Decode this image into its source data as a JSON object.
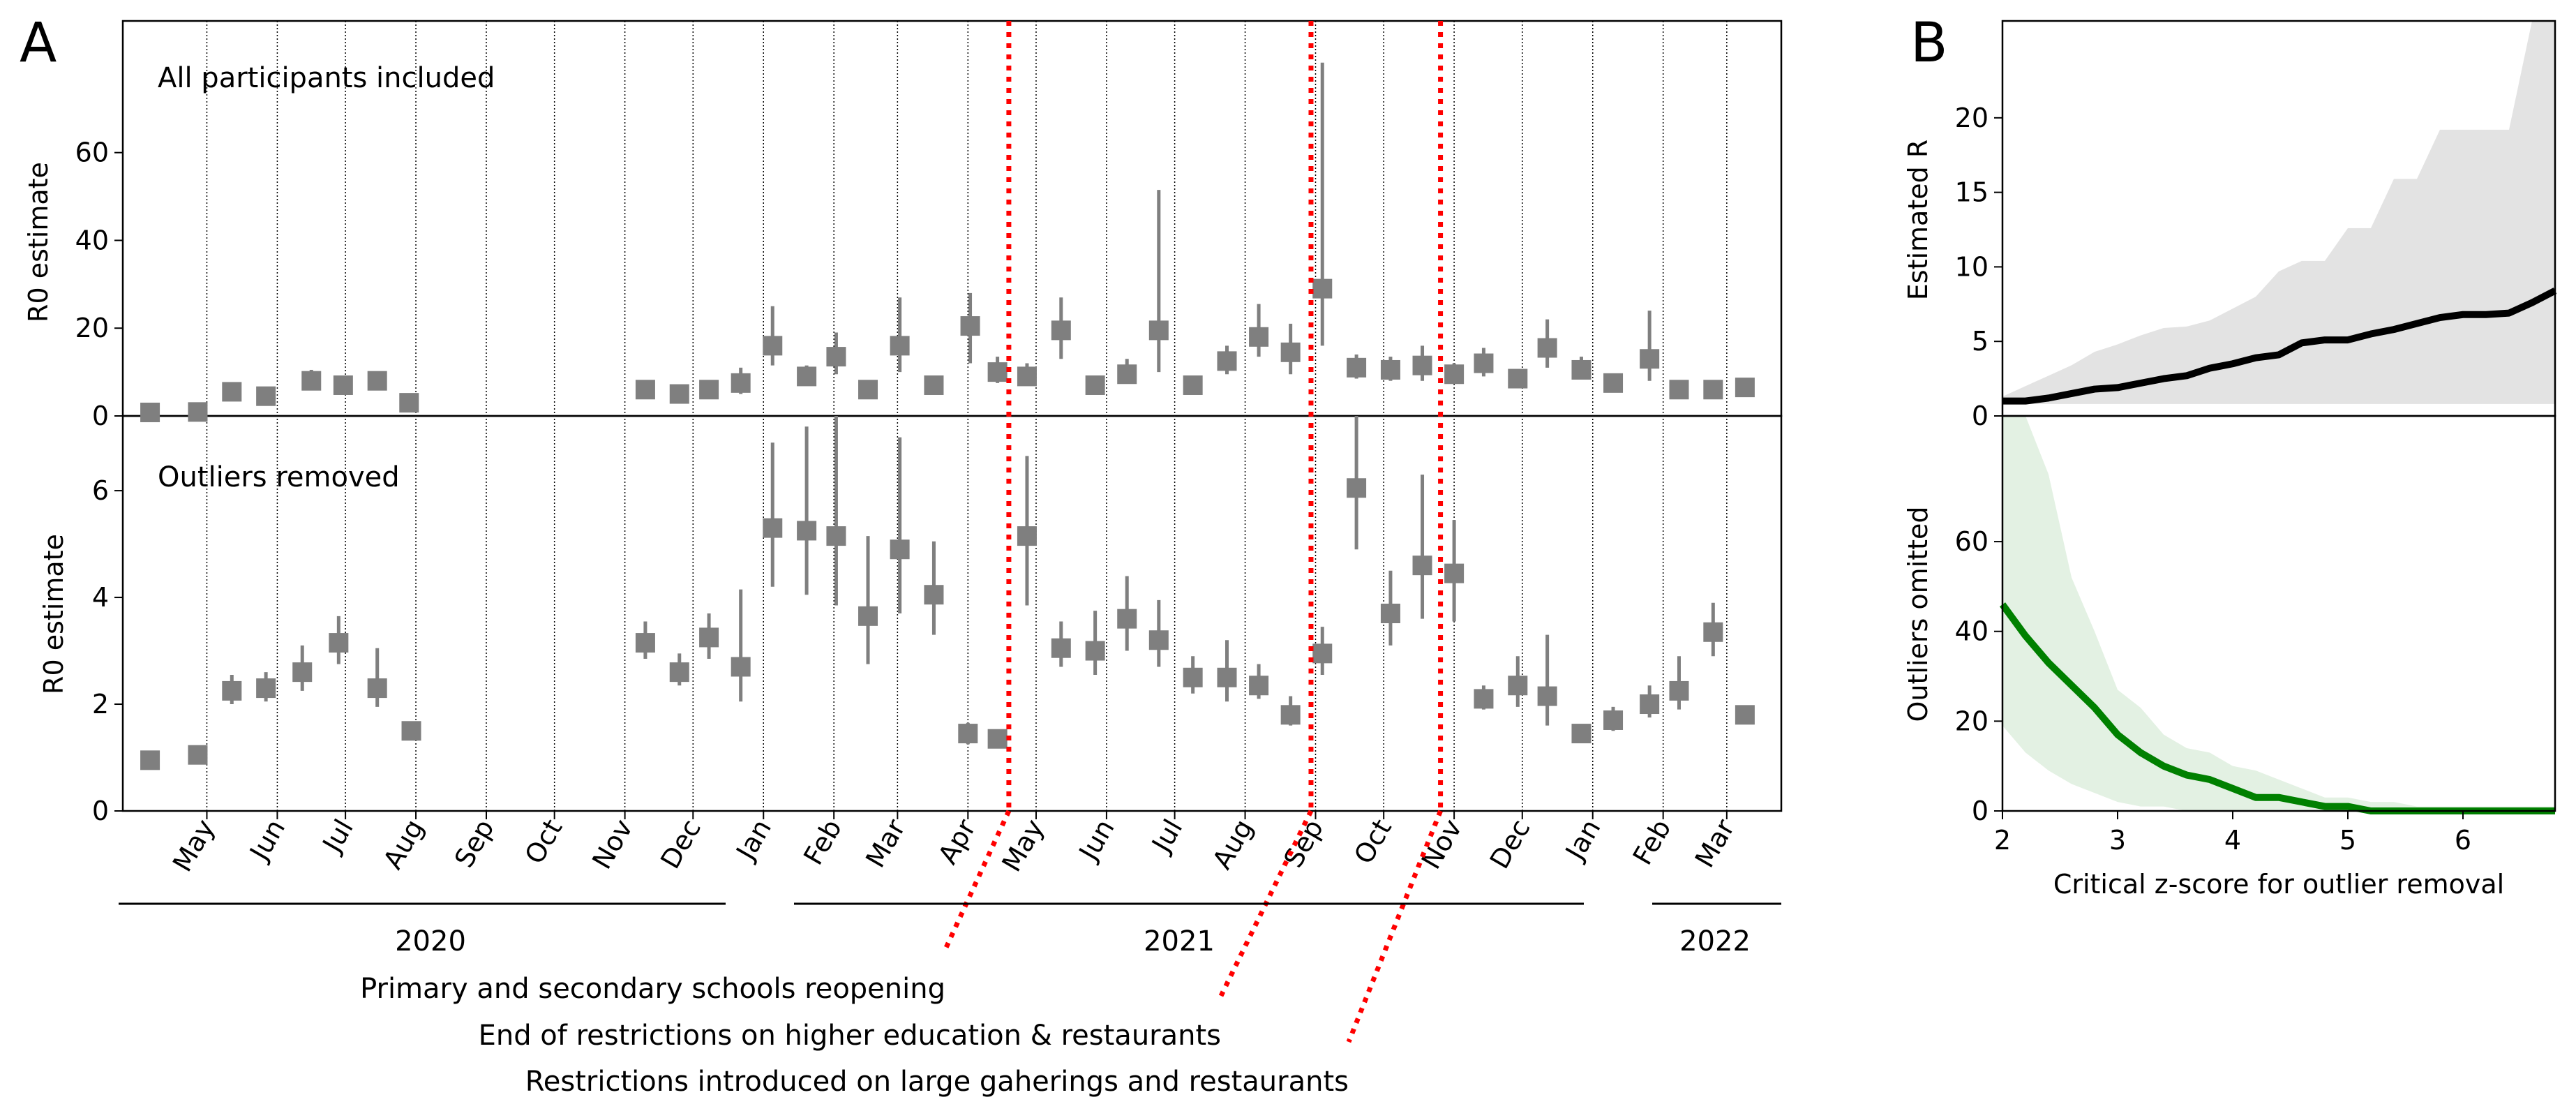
{
  "panel_a": {
    "letter": "A",
    "title_top": "All participants included",
    "title_bottom": "Outliers removed",
    "ylabel_top": "R0 estimate",
    "ylabel_bottom": "R0 estimate",
    "yticks_top": [
      0,
      20,
      40,
      60
    ],
    "yticks_bottom": [
      0,
      2,
      4,
      6
    ],
    "year_labels": [
      "2020",
      "2021",
      "2022"
    ],
    "event_labels": [
      "Primary and secondary schools reopening",
      "End of restrictions on higher education & restaurants",
      "Restrictions introduced on large gaherings and restaurants"
    ]
  },
  "panel_b": {
    "letter": "B",
    "ylabel_top": "Estimated R",
    "ylabel_bottom": "Outliers omitted",
    "xlabel": "Critical z-score for outlier removal",
    "yticks_top": [
      0,
      5,
      10,
      15,
      20
    ],
    "yticks_bottom": [
      0,
      20,
      40,
      60
    ],
    "xticks": [
      2,
      3,
      4,
      5,
      6
    ]
  },
  "colors": {
    "marker": "#7f7f7f",
    "event_line": "#ff0000",
    "estimated_r_line": "#000000",
    "estimated_r_band": "#e3e3e3",
    "outliers_line": "#008000",
    "outliers_band": "#e3f1e3"
  },
  "chart_data": [
    {
      "type": "scatter",
      "title": "All participants included",
      "ylabel": "R0 estimate",
      "ylim": [
        0,
        90
      ],
      "grid": "vertical dotted lines at month boundaries",
      "x_axis": {
        "type": "date",
        "range": [
          "2020-03-25",
          "2022-03-25"
        ],
        "month_ticks": [
          {
            "label": "May",
            "date": "2020-05-01"
          },
          {
            "label": "Jun",
            "date": "2020-06-01"
          },
          {
            "label": "Jul",
            "date": "2020-07-01"
          },
          {
            "label": "Aug",
            "date": "2020-08-01"
          },
          {
            "label": "Sep",
            "date": "2020-09-01"
          },
          {
            "label": "Oct",
            "date": "2020-10-01"
          },
          {
            "label": "Nov",
            "date": "2020-11-01"
          },
          {
            "label": "Dec",
            "date": "2020-12-01"
          },
          {
            "label": "Jan",
            "date": "2021-01-01"
          },
          {
            "label": "Feb",
            "date": "2021-02-01"
          },
          {
            "label": "Mar",
            "date": "2021-03-01"
          },
          {
            "label": "Apr",
            "date": "2021-04-01"
          },
          {
            "label": "May",
            "date": "2021-05-01"
          },
          {
            "label": "Jun",
            "date": "2021-06-01"
          },
          {
            "label": "Jul",
            "date": "2021-07-01"
          },
          {
            "label": "Aug",
            "date": "2021-08-01"
          },
          {
            "label": "Sep",
            "date": "2021-09-01"
          },
          {
            "label": "Oct",
            "date": "2021-10-01"
          },
          {
            "label": "Nov",
            "date": "2021-11-01"
          },
          {
            "label": "Dec",
            "date": "2021-12-01"
          },
          {
            "label": "Jan",
            "date": "2022-01-01"
          },
          {
            "label": "Feb",
            "date": "2022-02-01"
          },
          {
            "label": "Mar",
            "date": "2022-03-01"
          }
        ]
      },
      "event_dates": [
        "2021-04-19",
        "2021-08-30",
        "2021-10-26"
      ],
      "points": [
        {
          "date": "2020-04-06",
          "y": 0.8,
          "lo": 0.5,
          "hi": 1.2
        },
        {
          "date": "2020-04-27",
          "y": 0.9,
          "lo": 0.6,
          "hi": 1.3
        },
        {
          "date": "2020-05-12",
          "y": 5.5,
          "lo": 4.5,
          "hi": 6.5
        },
        {
          "date": "2020-05-27",
          "y": 4.5,
          "lo": 3.5,
          "hi": 5.5
        },
        {
          "date": "2020-06-16",
          "y": 8.0,
          "lo": 6.5,
          "hi": 10.5
        },
        {
          "date": "2020-06-30",
          "y": 7.0,
          "lo": 5.5,
          "hi": 8.5
        },
        {
          "date": "2020-07-15",
          "y": 8.0,
          "lo": 6.5,
          "hi": 10.0
        },
        {
          "date": "2020-07-29",
          "y": 3.0,
          "lo": 2.0,
          "hi": 4.0
        },
        {
          "date": "2020-11-10",
          "y": 6.0,
          "lo": 5.0,
          "hi": 7.0
        },
        {
          "date": "2020-11-25",
          "y": 5.0,
          "lo": 4.0,
          "hi": 6.5
        },
        {
          "date": "2020-12-08",
          "y": 6.0,
          "lo": 4.5,
          "hi": 8.0
        },
        {
          "date": "2020-12-22",
          "y": 7.5,
          "lo": 5.0,
          "hi": 11.0
        },
        {
          "date": "2021-01-05",
          "y": 16.0,
          "lo": 11.5,
          "hi": 25.0
        },
        {
          "date": "2021-01-20",
          "y": 9.0,
          "lo": 7.0,
          "hi": 11.5
        },
        {
          "date": "2021-02-02",
          "y": 13.5,
          "lo": 9.5,
          "hi": 19.0
        },
        {
          "date": "2021-02-16",
          "y": 6.0,
          "lo": 5.0,
          "hi": 7.5
        },
        {
          "date": "2021-03-02",
          "y": 16.0,
          "lo": 10.0,
          "hi": 27.0
        },
        {
          "date": "2021-03-17",
          "y": 7.0,
          "lo": 5.5,
          "hi": 9.0
        },
        {
          "date": "2021-04-02",
          "y": 20.5,
          "lo": 12.0,
          "hi": 28.0
        },
        {
          "date": "2021-04-14",
          "y": 10.0,
          "lo": 7.5,
          "hi": 13.5
        },
        {
          "date": "2021-04-27",
          "y": 9.0,
          "lo": 7.0,
          "hi": 12.0
        },
        {
          "date": "2021-05-12",
          "y": 19.5,
          "lo": 13.0,
          "hi": 27.0
        },
        {
          "date": "2021-05-27",
          "y": 7.0,
          "lo": 5.5,
          "hi": 9.0
        },
        {
          "date": "2021-06-10",
          "y": 9.5,
          "lo": 7.5,
          "hi": 13.0
        },
        {
          "date": "2021-06-24",
          "y": 19.5,
          "lo": 10.0,
          "hi": 51.5
        },
        {
          "date": "2021-07-09",
          "y": 7.0,
          "lo": 5.5,
          "hi": 9.0
        },
        {
          "date": "2021-07-24",
          "y": 12.5,
          "lo": 9.5,
          "hi": 16.0
        },
        {
          "date": "2021-08-07",
          "y": 18.0,
          "lo": 13.5,
          "hi": 25.5
        },
        {
          "date": "2021-08-21",
          "y": 14.5,
          "lo": 9.5,
          "hi": 21.0
        },
        {
          "date": "2021-09-04",
          "y": 29.0,
          "lo": 16.0,
          "hi": 80.5
        },
        {
          "date": "2021-09-19",
          "y": 11.0,
          "lo": 8.5,
          "hi": 14.0
        },
        {
          "date": "2021-10-04",
          "y": 10.5,
          "lo": 8.0,
          "hi": 13.5
        },
        {
          "date": "2021-10-18",
          "y": 11.5,
          "lo": 8.0,
          "hi": 16.0
        },
        {
          "date": "2021-11-01",
          "y": 9.5,
          "lo": 7.5,
          "hi": 12.0
        },
        {
          "date": "2021-11-14",
          "y": 12.0,
          "lo": 9.0,
          "hi": 15.5
        },
        {
          "date": "2021-11-29",
          "y": 8.5,
          "lo": 7.0,
          "hi": 10.5
        },
        {
          "date": "2021-12-12",
          "y": 15.5,
          "lo": 11.0,
          "hi": 22.0
        },
        {
          "date": "2021-12-27",
          "y": 10.5,
          "lo": 8.5,
          "hi": 13.5
        },
        {
          "date": "2022-01-10",
          "y": 7.5,
          "lo": 6.0,
          "hi": 9.5
        },
        {
          "date": "2022-01-26",
          "y": 13.0,
          "lo": 8.0,
          "hi": 24.0
        },
        {
          "date": "2022-02-08",
          "y": 6.0,
          "lo": 5.0,
          "hi": 7.5
        },
        {
          "date": "2022-02-23",
          "y": 6.0,
          "lo": 5.0,
          "hi": 7.5
        },
        {
          "date": "2022-03-09",
          "y": 6.5,
          "lo": 5.0,
          "hi": 8.0
        }
      ]
    },
    {
      "type": "scatter",
      "title": "Outliers removed",
      "ylabel": "R0 estimate",
      "ylim": [
        0,
        7.4
      ],
      "x_axis": "same date axis as the panel above",
      "points": [
        {
          "date": "2020-04-06",
          "y": 0.95,
          "lo": 0.85,
          "hi": 1.05
        },
        {
          "date": "2020-04-27",
          "y": 1.05,
          "lo": 0.95,
          "hi": 1.15
        },
        {
          "date": "2020-05-12",
          "y": 2.25,
          "lo": 2.0,
          "hi": 2.55
        },
        {
          "date": "2020-05-27",
          "y": 2.3,
          "lo": 2.05,
          "hi": 2.6
        },
        {
          "date": "2020-06-12",
          "y": 2.6,
          "lo": 2.25,
          "hi": 3.1
        },
        {
          "date": "2020-06-28",
          "y": 3.15,
          "lo": 2.75,
          "hi": 3.65
        },
        {
          "date": "2020-07-15",
          "y": 2.3,
          "lo": 1.95,
          "hi": 3.05
        },
        {
          "date": "2020-07-30",
          "y": 1.5,
          "lo": 1.35,
          "hi": 1.65
        },
        {
          "date": "2020-11-10",
          "y": 3.15,
          "lo": 2.85,
          "hi": 3.55
        },
        {
          "date": "2020-11-25",
          "y": 2.6,
          "lo": 2.35,
          "hi": 2.95
        },
        {
          "date": "2020-12-08",
          "y": 3.25,
          "lo": 2.85,
          "hi": 3.7
        },
        {
          "date": "2020-12-22",
          "y": 2.7,
          "lo": 2.05,
          "hi": 4.15
        },
        {
          "date": "2021-01-05",
          "y": 5.3,
          "lo": 4.2,
          "hi": 6.9
        },
        {
          "date": "2021-01-20",
          "y": 5.25,
          "lo": 4.05,
          "hi": 7.2
        },
        {
          "date": "2021-02-02",
          "y": 5.15,
          "lo": 3.85,
          "hi": 7.5
        },
        {
          "date": "2021-02-16",
          "y": 3.65,
          "lo": 2.75,
          "hi": 5.15
        },
        {
          "date": "2021-03-02",
          "y": 4.9,
          "lo": 3.7,
          "hi": 7.0
        },
        {
          "date": "2021-03-17",
          "y": 4.05,
          "lo": 3.3,
          "hi": 5.05
        },
        {
          "date": "2021-04-01",
          "y": 1.45,
          "lo": 1.25,
          "hi": 1.65
        },
        {
          "date": "2021-04-14",
          "y": 1.35,
          "lo": 1.2,
          "hi": 1.5
        },
        {
          "date": "2021-04-27",
          "y": 5.15,
          "lo": 3.85,
          "hi": 6.65
        },
        {
          "date": "2021-05-12",
          "y": 3.05,
          "lo": 2.7,
          "hi": 3.55
        },
        {
          "date": "2021-05-27",
          "y": 3.0,
          "lo": 2.55,
          "hi": 3.75
        },
        {
          "date": "2021-06-10",
          "y": 3.6,
          "lo": 3.0,
          "hi": 4.4
        },
        {
          "date": "2021-06-24",
          "y": 3.2,
          "lo": 2.7,
          "hi": 3.95
        },
        {
          "date": "2021-07-09",
          "y": 2.5,
          "lo": 2.2,
          "hi": 2.9
        },
        {
          "date": "2021-07-24",
          "y": 2.5,
          "lo": 2.05,
          "hi": 3.2
        },
        {
          "date": "2021-08-07",
          "y": 2.35,
          "lo": 2.1,
          "hi": 2.75
        },
        {
          "date": "2021-08-21",
          "y": 1.8,
          "lo": 1.6,
          "hi": 2.15
        },
        {
          "date": "2021-09-04",
          "y": 2.95,
          "lo": 2.55,
          "hi": 3.45
        },
        {
          "date": "2021-09-19",
          "y": 6.05,
          "lo": 4.9,
          "hi": 7.55
        },
        {
          "date": "2021-10-04",
          "y": 3.7,
          "lo": 3.1,
          "hi": 4.5
        },
        {
          "date": "2021-10-18",
          "y": 4.6,
          "lo": 3.6,
          "hi": 6.3
        },
        {
          "date": "2021-11-01",
          "y": 4.45,
          "lo": 3.55,
          "hi": 5.45
        },
        {
          "date": "2021-11-14",
          "y": 2.1,
          "lo": 1.9,
          "hi": 2.35
        },
        {
          "date": "2021-11-29",
          "y": 2.35,
          "lo": 1.95,
          "hi": 2.9
        },
        {
          "date": "2021-12-12",
          "y": 2.15,
          "lo": 1.6,
          "hi": 3.3
        },
        {
          "date": "2021-12-27",
          "y": 1.45,
          "lo": 1.3,
          "hi": 1.6
        },
        {
          "date": "2022-01-10",
          "y": 1.7,
          "lo": 1.5,
          "hi": 1.95
        },
        {
          "date": "2022-01-26",
          "y": 2.0,
          "lo": 1.75,
          "hi": 2.35
        },
        {
          "date": "2022-02-08",
          "y": 2.25,
          "lo": 1.9,
          "hi": 2.9
        },
        {
          "date": "2022-02-23",
          "y": 3.35,
          "lo": 2.9,
          "hi": 3.9
        },
        {
          "date": "2022-03-09",
          "y": 1.8,
          "lo": 1.65,
          "hi": 1.95
        }
      ]
    },
    {
      "type": "line",
      "ylabel": "Estimated R",
      "xlim": [
        2,
        6.8
      ],
      "ylim": [
        0,
        26.5
      ],
      "x": [
        2.0,
        2.2,
        2.4,
        2.6,
        2.8,
        3.0,
        3.2,
        3.4,
        3.6,
        3.8,
        4.0,
        4.2,
        4.4,
        4.6,
        4.8,
        5.0,
        5.2,
        5.4,
        5.6,
        5.8,
        6.0,
        6.2,
        6.4,
        6.6,
        6.8
      ],
      "series": [
        {
          "values": [
            1.0,
            1.0,
            1.2,
            1.5,
            1.8,
            1.9,
            2.2,
            2.5,
            2.7,
            3.2,
            3.5,
            3.9,
            4.1,
            4.9,
            5.1,
            5.1,
            5.5,
            5.8,
            6.2,
            6.6,
            6.8,
            6.8,
            6.9,
            7.6,
            8.4
          ],
          "band_lower": [
            0.8,
            0.8,
            0.8,
            0.8,
            0.8,
            0.8,
            0.8,
            0.8,
            0.8,
            0.8,
            0.8,
            0.8,
            0.8,
            0.8,
            0.8,
            0.8,
            0.8,
            0.8,
            0.8,
            0.8,
            0.8,
            0.8,
            0.8,
            0.8,
            0.8
          ],
          "band_upper": [
            1.3,
            2.0,
            2.7,
            3.4,
            4.3,
            4.8,
            5.4,
            5.9,
            6.0,
            6.4,
            7.2,
            8.0,
            9.7,
            10.4,
            10.4,
            12.6,
            12.6,
            15.9,
            15.9,
            19.2,
            19.2,
            19.2,
            19.2,
            26.5,
            26.5
          ]
        }
      ]
    },
    {
      "type": "line",
      "ylabel": "Outliers omitted",
      "xlabel": "Critical z-score for outlier removal",
      "xlim": [
        2,
        6.8
      ],
      "ylim": [
        0,
        88
      ],
      "x": [
        2.0,
        2.2,
        2.4,
        2.6,
        2.8,
        3.0,
        3.2,
        3.4,
        3.6,
        3.8,
        4.0,
        4.2,
        4.4,
        4.6,
        4.8,
        5.0,
        5.2,
        5.4,
        5.6,
        5.8,
        6.0,
        6.2,
        6.4,
        6.6,
        6.8
      ],
      "series": [
        {
          "values": [
            46,
            39,
            33,
            28,
            23,
            17,
            13,
            10,
            8,
            7,
            5,
            3,
            3,
            2,
            1,
            1,
            0,
            0,
            0,
            0,
            0,
            0,
            0,
            0,
            0
          ],
          "band_lower": [
            19,
            13,
            9,
            6,
            4,
            2,
            1,
            1,
            0,
            0,
            0,
            0,
            0,
            0,
            0,
            0,
            0,
            0,
            0,
            0,
            0,
            0,
            0,
            0,
            0
          ],
          "band_upper": [
            88,
            88,
            75,
            52,
            40,
            27,
            23,
            17,
            14,
            13,
            10,
            9,
            7,
            5,
            3,
            3,
            2,
            2,
            1,
            1,
            1,
            1,
            1,
            1,
            1
          ]
        }
      ]
    }
  ]
}
